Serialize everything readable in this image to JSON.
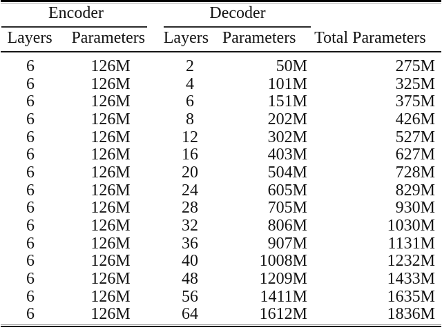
{
  "colors": {
    "background": "#ffffff",
    "text": "#141414",
    "rule_dark": "#000000",
    "rule_light": "#999999"
  },
  "table": {
    "group_headers": [
      {
        "label": "Encoder"
      },
      {
        "label": "Decoder"
      }
    ],
    "columns": [
      "Layers",
      "Parameters",
      "Layers",
      "Parameters",
      "Total Parameters"
    ],
    "rows": [
      [
        "6",
        "126M",
        "2",
        "50M",
        "275M"
      ],
      [
        "6",
        "126M",
        "4",
        "101M",
        "325M"
      ],
      [
        "6",
        "126M",
        "6",
        "151M",
        "375M"
      ],
      [
        "6",
        "126M",
        "8",
        "202M",
        "426M"
      ],
      [
        "6",
        "126M",
        "12",
        "302M",
        "527M"
      ],
      [
        "6",
        "126M",
        "16",
        "403M",
        "627M"
      ],
      [
        "6",
        "126M",
        "20",
        "504M",
        "728M"
      ],
      [
        "6",
        "126M",
        "24",
        "605M",
        "829M"
      ],
      [
        "6",
        "126M",
        "28",
        "705M",
        "930M"
      ],
      [
        "6",
        "126M",
        "32",
        "806M",
        "1030M"
      ],
      [
        "6",
        "126M",
        "36",
        "907M",
        "1131M"
      ],
      [
        "6",
        "126M",
        "40",
        "1008M",
        "1232M"
      ],
      [
        "6",
        "126M",
        "48",
        "1209M",
        "1433M"
      ],
      [
        "6",
        "126M",
        "56",
        "1411M",
        "1635M"
      ],
      [
        "6",
        "126M",
        "64",
        "1612M",
        "1836M"
      ]
    ]
  }
}
